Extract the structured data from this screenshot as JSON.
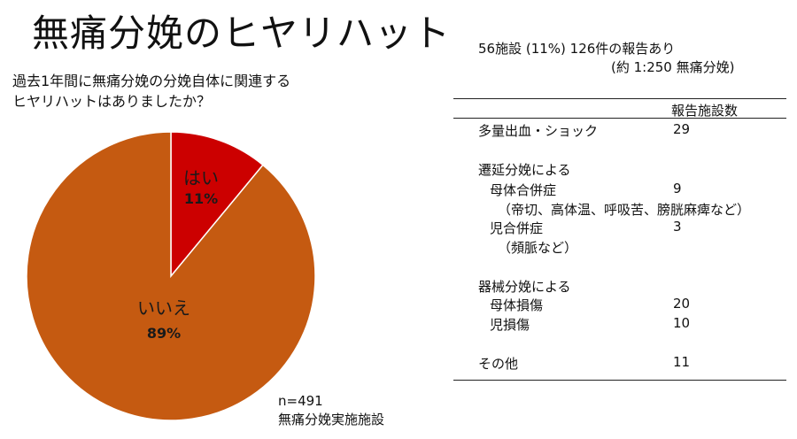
{
  "title": "無痛分娩のヒヤリハット",
  "question": [
    "過去1年間に無痛分娩の分娩自体に関連する",
    "ヒヤリハットはありましたか？"
  ],
  "chart_data": {
    "type": "pie",
    "slices": [
      {
        "label": "はい",
        "value": 11,
        "display": "11%",
        "color": "#cc0000"
      },
      {
        "label": "いいえ",
        "value": 89,
        "display": "89%",
        "color": "#c55a11"
      }
    ]
  },
  "footnote": [
    "n=491",
    "無痛分娩実施施設"
  ],
  "summary": [
    "56施設 (11%)   126件の報告あり",
    "(約 1:250 無痛分娩)"
  ],
  "table": {
    "header": "報告施設数",
    "rows": [
      {
        "label": "多量出血・ショック",
        "value": "29"
      },
      {
        "label": "遷延分娩による",
        "value": ""
      },
      {
        "label": "母体合併症",
        "value": "9"
      },
      {
        "label": "（帝切、高体温、呼吸苦、膀胱麻痺など）",
        "value": ""
      },
      {
        "label": "児合併症",
        "value": "3"
      },
      {
        "label": "（頻脈など）",
        "value": ""
      },
      {
        "label": "器械分娩による",
        "value": ""
      },
      {
        "label": "母体損傷",
        "value": "20"
      },
      {
        "label": "児損傷",
        "value": "10"
      },
      {
        "label": "その他",
        "value": "11"
      }
    ]
  }
}
